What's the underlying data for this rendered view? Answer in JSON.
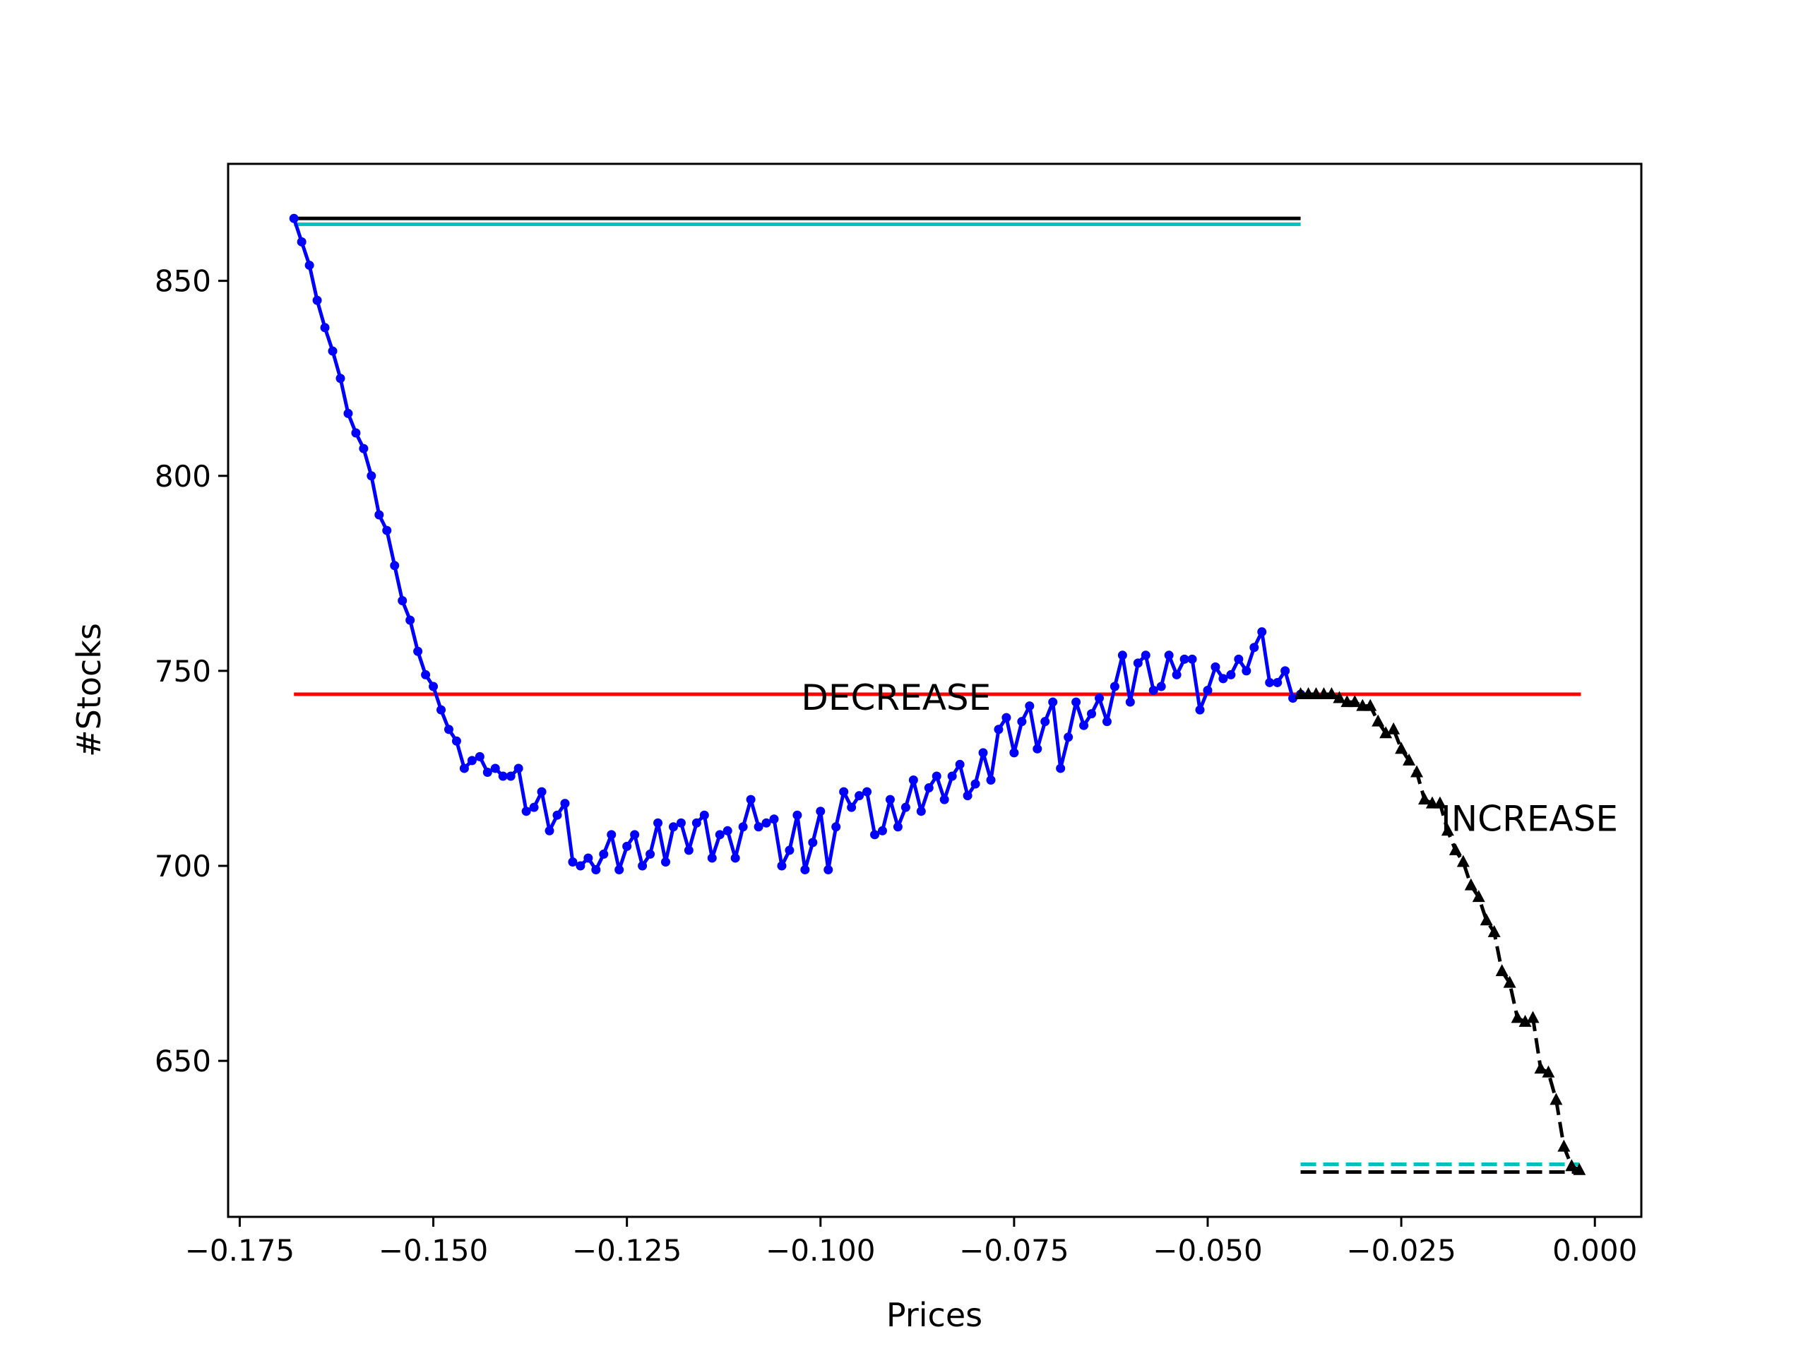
{
  "chart_data": {
    "type": "line",
    "title": "",
    "xlabel": "Prices",
    "ylabel": "#Stocks",
    "xlim": [
      -0.1765,
      0.006
    ],
    "ylim": [
      610,
      880
    ],
    "xticks": [
      -0.175,
      -0.15,
      -0.125,
      -0.1,
      -0.075,
      -0.05,
      -0.025,
      0.0
    ],
    "xtick_labels": [
      "−0.175",
      "−0.150",
      "−0.125",
      "−0.100",
      "−0.075",
      "−0.050",
      "−0.025",
      "0.000"
    ],
    "yticks": [
      650,
      700,
      750,
      800,
      850
    ],
    "ytick_labels": [
      "650",
      "700",
      "750",
      "800",
      "850"
    ],
    "grid": false,
    "legend": "none",
    "series": [
      {
        "style": "solid",
        "color": "#0000ff",
        "marker": "dot",
        "x": [
          -0.168,
          -0.167,
          -0.166,
          -0.165,
          -0.164,
          -0.163,
          -0.162,
          -0.161,
          -0.16,
          -0.159,
          -0.158,
          -0.157,
          -0.156,
          -0.155,
          -0.154,
          -0.153,
          -0.152,
          -0.151,
          -0.15,
          -0.149,
          -0.148,
          -0.147,
          -0.146,
          -0.145,
          -0.144,
          -0.143,
          -0.142,
          -0.141,
          -0.14,
          -0.139,
          -0.138,
          -0.137,
          -0.136,
          -0.135,
          -0.134,
          -0.133,
          -0.132,
          -0.131,
          -0.13,
          -0.129,
          -0.128,
          -0.127,
          -0.126,
          -0.125,
          -0.124,
          -0.123,
          -0.122,
          -0.121,
          -0.12,
          -0.119,
          -0.118,
          -0.117,
          -0.116,
          -0.115,
          -0.114,
          -0.113,
          -0.112,
          -0.111,
          -0.11,
          -0.109,
          -0.108,
          -0.107,
          -0.106,
          -0.105,
          -0.104,
          -0.103,
          -0.102,
          -0.101,
          -0.1,
          -0.099,
          -0.098,
          -0.097,
          -0.096,
          -0.095,
          -0.094,
          -0.093,
          -0.092,
          -0.091,
          -0.09,
          -0.089,
          -0.088,
          -0.087,
          -0.086,
          -0.085,
          -0.084,
          -0.083,
          -0.082,
          -0.081,
          -0.08,
          -0.079,
          -0.078,
          -0.077,
          -0.076,
          -0.075,
          -0.074,
          -0.073,
          -0.072,
          -0.071,
          -0.07,
          -0.069,
          -0.068,
          -0.067,
          -0.066,
          -0.065,
          -0.064,
          -0.063,
          -0.062,
          -0.061,
          -0.06,
          -0.059,
          -0.058,
          -0.057,
          -0.056,
          -0.055,
          -0.054,
          -0.053,
          -0.052,
          -0.051,
          -0.05,
          -0.049,
          -0.048,
          -0.047,
          -0.046,
          -0.045,
          -0.044,
          -0.043,
          -0.042,
          -0.041,
          -0.04,
          -0.039,
          -0.038
        ],
        "y": [
          866,
          860,
          854,
          845,
          838,
          832,
          825,
          816,
          811,
          807,
          800,
          790,
          786,
          777,
          768,
          763,
          755,
          749,
          746,
          740,
          735,
          732,
          725,
          727,
          728,
          724,
          725,
          723,
          723,
          725,
          714,
          715,
          719,
          709,
          713,
          716,
          701,
          700,
          702,
          699,
          703,
          708,
          699,
          705,
          708,
          700,
          703,
          711,
          701,
          710,
          711,
          704,
          711,
          713,
          702,
          708,
          709,
          702,
          710,
          717,
          710,
          711,
          712,
          700,
          704,
          713,
          699,
          706,
          714,
          699,
          710,
          719,
          715,
          718,
          719,
          708,
          709,
          717,
          710,
          715,
          722,
          714,
          720,
          723,
          717,
          723,
          726,
          718,
          721,
          729,
          722,
          735,
          738,
          729,
          737,
          741,
          730,
          737,
          742,
          725,
          733,
          742,
          736,
          739,
          743,
          737,
          746,
          754,
          742,
          752,
          754,
          745,
          746,
          754,
          749,
          753,
          753,
          740,
          745,
          751,
          748,
          749,
          753,
          750,
          756,
          760,
          747,
          747,
          750,
          743,
          744
        ]
      },
      {
        "style": "dashed",
        "color": "#000000",
        "marker": "triangle",
        "x": [
          -0.038,
          -0.037,
          -0.036,
          -0.035,
          -0.034,
          -0.033,
          -0.032,
          -0.031,
          -0.03,
          -0.029,
          -0.028,
          -0.027,
          -0.026,
          -0.025,
          -0.024,
          -0.023,
          -0.022,
          -0.021,
          -0.02,
          -0.019,
          -0.018,
          -0.017,
          -0.016,
          -0.015,
          -0.014,
          -0.013,
          -0.012,
          -0.011,
          -0.01,
          -0.009,
          -0.008,
          -0.007,
          -0.006,
          -0.005,
          -0.004,
          -0.003,
          -0.002
        ],
        "y": [
          744,
          744,
          744,
          744,
          744,
          743,
          742,
          742,
          741,
          741,
          737,
          734,
          735,
          730,
          727,
          724,
          717,
          716,
          716,
          709,
          704,
          701,
          695,
          692,
          686,
          683,
          673,
          670,
          661,
          660,
          661,
          648,
          647,
          640,
          628,
          623,
          622
        ]
      }
    ],
    "hlines": [
      {
        "y": 866,
        "x0": -0.168,
        "x1": -0.038,
        "color": "#000000",
        "style": "solid"
      },
      {
        "y": 864.5,
        "x0": -0.168,
        "x1": -0.038,
        "color": "#00bfbf",
        "style": "solid"
      },
      {
        "y": 744,
        "x0": -0.168,
        "x1": -0.0018,
        "color": "#ff0000",
        "style": "solid"
      },
      {
        "y": 623.5,
        "x0": -0.038,
        "x1": -0.002,
        "color": "#00bfbf",
        "style": "dashed"
      },
      {
        "y": 621.5,
        "x0": -0.038,
        "x1": -0.002,
        "color": "#000000",
        "style": "dashed"
      }
    ],
    "annotations": [
      {
        "text": "DECREASE",
        "x": -0.1025,
        "y": 740
      },
      {
        "text": "INCREASE",
        "x": -0.0199,
        "y": 709
      }
    ]
  }
}
